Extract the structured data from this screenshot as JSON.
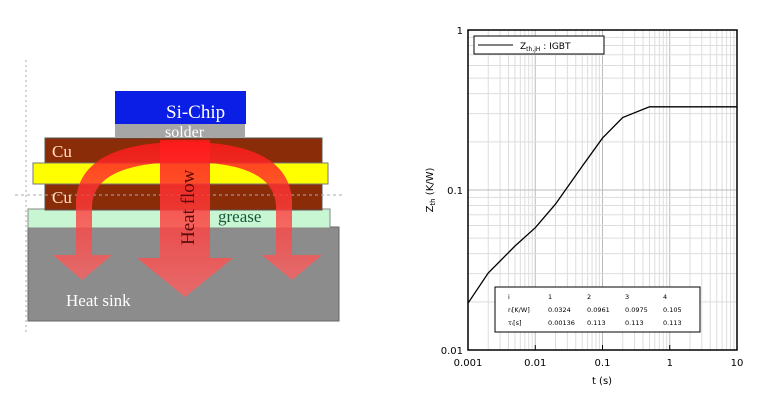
{
  "diagram": {
    "layers": {
      "chip": "Si-Chip",
      "solder": "solder",
      "cu_top": "Cu",
      "cu_bottom": "Cu",
      "grease": "grease",
      "heatsink": "Heat sink"
    },
    "arrow_label": "Heat flow",
    "colors": {
      "chip": "#0a1ee6",
      "solder": "#a6a6a6",
      "cu": "#8b2c08",
      "ceramic": "#ffff00",
      "grease": "#c8f5d2",
      "heatsink": "#8c8c8c",
      "arrow": "#ff3030"
    }
  },
  "chart_data": {
    "type": "line",
    "xlabel": "t (s)",
    "ylabel": "Z",
    "ylabel_sub": "th",
    "ylabel_unit": " (K/W)",
    "xscale": "log",
    "yscale": "log",
    "xlim": [
      0.001,
      10
    ],
    "ylim": [
      0.01,
      1
    ],
    "xticks": [
      "0.001",
      "0.01",
      "0.1",
      "1",
      "10"
    ],
    "yticks": [
      "0.01",
      "0.1",
      "1"
    ],
    "grid": true,
    "legend": {
      "position": "top-left",
      "label": "Z",
      "label_sub": "th,jH",
      "label_rest": " : IGBT"
    },
    "series": [
      {
        "name": "Zth,jH : IGBT",
        "x": [
          0.001,
          0.002,
          0.005,
          0.01,
          0.02,
          0.05,
          0.1,
          0.2,
          0.5,
          1,
          2,
          5,
          10
        ],
        "y": [
          0.0196,
          0.0303,
          0.0447,
          0.0581,
          0.0816,
          0.141,
          0.211,
          0.284,
          0.331,
          0.331,
          0.331,
          0.331,
          0.331
        ]
      }
    ],
    "table": {
      "header": [
        "i",
        "1",
        "2",
        "3",
        "4"
      ],
      "rows": [
        [
          "rᵢ[K/W]",
          "0.0324",
          "0.0961",
          "0.0975",
          "0.105"
        ],
        [
          "τᵢ[s]",
          "0.00136",
          "0.113",
          "0.113",
          "0.113"
        ]
      ]
    }
  }
}
